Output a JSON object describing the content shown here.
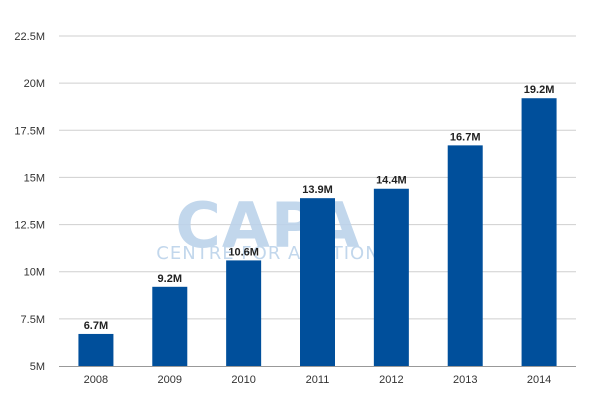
{
  "chart_data": {
    "type": "bar",
    "categories": [
      "2008",
      "2009",
      "2010",
      "2011",
      "2012",
      "2013",
      "2014"
    ],
    "values": [
      6.7,
      9.2,
      10.6,
      13.9,
      14.4,
      16.7,
      19.2
    ],
    "data_labels": [
      "6.7M",
      "9.2M",
      "10.6M",
      "13.9M",
      "14.4M",
      "16.7M",
      "19.2M"
    ],
    "y_ticks": [
      5,
      7.5,
      10,
      12.5,
      15,
      17.5,
      20,
      22.5
    ],
    "y_tick_labels": [
      "5M",
      "7.5M",
      "10M",
      "12.5M",
      "15M",
      "17.5M",
      "20M",
      "22.5M"
    ],
    "ylim": [
      5,
      22.5
    ],
    "title": "",
    "xlabel": "",
    "ylabel": "",
    "grid": true,
    "bar_color": "#004f9b",
    "grid_color": "#cfcfcf",
    "watermark": {
      "logo_text": "CAPA",
      "subtext": "CENTRE FOR AVIATION",
      "color": "#bcd3ea"
    }
  }
}
